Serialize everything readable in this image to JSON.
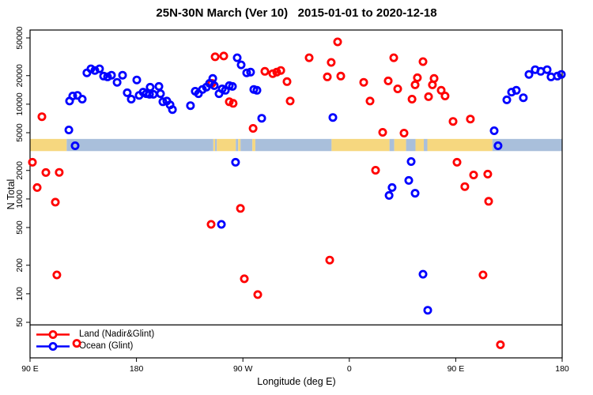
{
  "title": "25N-30N March (Ver 10)   2015-01-01 to 2020-12-18",
  "chart_data": {
    "type": "scatter",
    "title": "25N-30N March (Ver 10)   2015-01-01 to 2020-12-18",
    "xlabel": "Longitude (deg E)",
    "ylabel": "N Total",
    "x_axis": {
      "range_deg_from_90E": [
        0,
        450
      ],
      "tick_positions": [
        0,
        90,
        180,
        270,
        360,
        450
      ],
      "tick_labels": [
        "90 E",
        "180",
        "90 W",
        "0",
        "90 E",
        "180"
      ]
    },
    "y_axis": {
      "scale": "log10",
      "tick_values": [
        50,
        100,
        200,
        500,
        1000,
        2000,
        5000,
        10000,
        20000,
        50000
      ],
      "tick_labels": [
        "50",
        "100",
        "200",
        "500",
        "1000",
        "2000",
        "5000",
        "10000",
        "20000",
        "50000"
      ],
      "visible_range": [
        21,
        60000
      ]
    },
    "grid": "off",
    "hline_n": 47,
    "land_ocean_strip": {
      "n_top": 4300,
      "n_bottom": 3200,
      "land_color": "#f6d77f",
      "ocean_color": "#a9bfdb",
      "segments": [
        [
          "land",
          0,
          31
        ],
        [
          "ocean",
          31,
          155
        ],
        [
          "land",
          155,
          156.5
        ],
        [
          "ocean",
          156.5,
          158
        ],
        [
          "land",
          158,
          174
        ],
        [
          "ocean",
          174,
          176
        ],
        [
          "land",
          176,
          178
        ],
        [
          "ocean",
          178,
          188
        ],
        [
          "land",
          188,
          190.5
        ],
        [
          "ocean",
          190.5,
          255
        ],
        [
          "land",
          255,
          304
        ],
        [
          "ocean",
          304,
          308
        ],
        [
          "land",
          308,
          318
        ],
        [
          "ocean",
          318,
          326
        ],
        [
          "land",
          326,
          333
        ],
        [
          "ocean",
          333,
          336
        ],
        [
          "land",
          336,
          391
        ],
        [
          "ocean",
          391,
          450
        ]
      ]
    },
    "legend": {
      "position": "bottom-left"
    },
    "series": [
      {
        "name": "Land (Nadir&Glint)",
        "color": "#ff0000",
        "marker": "open-circle",
        "points": [
          [
            10,
            7380
          ],
          [
            2,
            2440
          ],
          [
            13.4,
            1900
          ],
          [
            24.7,
            1910
          ],
          [
            6,
            1320
          ],
          [
            21.4,
            925
          ],
          [
            22.7,
            158
          ],
          [
            39.5,
            30
          ],
          [
            153.8,
            16600
          ],
          [
            156.5,
            31600
          ],
          [
            163.8,
            32200
          ],
          [
            168.5,
            10600
          ],
          [
            171.8,
            10200
          ],
          [
            188.6,
            5560
          ],
          [
            198.6,
            22200
          ],
          [
            205.3,
            21000
          ],
          [
            208.6,
            21800
          ],
          [
            212,
            22700
          ],
          [
            217.3,
            17300
          ],
          [
            220,
            10800
          ],
          [
            236,
            30900
          ],
          [
            254.7,
            27600
          ],
          [
            251.4,
            19400
          ],
          [
            262.8,
            19800
          ],
          [
            260.1,
            45400
          ],
          [
            177.9,
            795
          ],
          [
            153.1,
            540
          ],
          [
            253.4,
            227
          ],
          [
            181.2,
            144
          ],
          [
            192.6,
            98
          ],
          [
            282.2,
            17000
          ],
          [
            287.5,
            10800
          ],
          [
            292.2,
            2010
          ],
          [
            298.2,
            5050
          ],
          [
            302.9,
            17600
          ],
          [
            307.6,
            30900
          ],
          [
            310.9,
            14500
          ],
          [
            316.3,
            4950
          ],
          [
            323,
            11300
          ],
          [
            325.6,
            16000
          ],
          [
            327.6,
            19000
          ],
          [
            332.3,
            28100
          ],
          [
            337,
            12000
          ],
          [
            340.3,
            16000
          ],
          [
            341.7,
            18700
          ],
          [
            347.7,
            14000
          ],
          [
            351,
            12200
          ],
          [
            357.7,
            6580
          ],
          [
            361.1,
            2440
          ],
          [
            367.7,
            1350
          ],
          [
            372.4,
            6970
          ],
          [
            375.1,
            1790
          ],
          [
            387.1,
            1830
          ],
          [
            387.8,
            945
          ],
          [
            383.1,
            158
          ],
          [
            397.8,
            29
          ]
        ]
      },
      {
        "name": "Ocean (Glint)",
        "color": "#0000ff",
        "marker": "open-circle",
        "points": [
          [
            32.8,
            5350
          ],
          [
            38.1,
            3640
          ],
          [
            33.4,
            10800
          ],
          [
            36.1,
            12200
          ],
          [
            40.1,
            12400
          ],
          [
            44.1,
            11300
          ],
          [
            48.1,
            21400
          ],
          [
            51.5,
            23600
          ],
          [
            54.8,
            22700
          ],
          [
            58.8,
            23600
          ],
          [
            62.2,
            19800
          ],
          [
            65.5,
            19400
          ],
          [
            68.9,
            20200
          ],
          [
            73.6,
            17000
          ],
          [
            78.2,
            20200
          ],
          [
            82.2,
            13200
          ],
          [
            85.6,
            11300
          ],
          [
            90.3,
            18000
          ],
          [
            92.3,
            12400
          ],
          [
            95.6,
            13400
          ],
          [
            98.3,
            12900
          ],
          [
            101.6,
            15100
          ],
          [
            101,
            12700
          ],
          [
            104.3,
            12700
          ],
          [
            109,
            15400
          ],
          [
            110.3,
            12900
          ],
          [
            112.3,
            10600
          ],
          [
            115.7,
            10800
          ],
          [
            118.4,
            9850
          ],
          [
            120.4,
            8770
          ],
          [
            135.7,
            9660
          ],
          [
            139.7,
            13700
          ],
          [
            142.4,
            12900
          ],
          [
            145.8,
            14300
          ],
          [
            149.1,
            15100
          ],
          [
            151.8,
            16600
          ],
          [
            154.5,
            18700
          ],
          [
            155.8,
            15700
          ],
          [
            159.8,
            12900
          ],
          [
            162.5,
            14500
          ],
          [
            165.2,
            14000
          ],
          [
            168.5,
            15700
          ],
          [
            171.2,
            15400
          ],
          [
            175.2,
            30900
          ],
          [
            178.5,
            26000
          ],
          [
            183.2,
            21400
          ],
          [
            186.5,
            21800
          ],
          [
            189.2,
            14300
          ],
          [
            191.9,
            14000
          ],
          [
            195.9,
            7100
          ],
          [
            161.8,
            540
          ],
          [
            173.8,
            2440
          ],
          [
            256.1,
            7240
          ],
          [
            322.3,
            2480
          ],
          [
            320.3,
            1570
          ],
          [
            306.2,
            1320
          ],
          [
            303.6,
            1090
          ],
          [
            325.6,
            1150
          ],
          [
            332.3,
            161
          ],
          [
            336.3,
            67
          ],
          [
            392.5,
            5250
          ],
          [
            395.8,
            3640
          ],
          [
            403.2,
            11100
          ],
          [
            407.2,
            13400
          ],
          [
            411.2,
            14000
          ],
          [
            417.2,
            11700
          ],
          [
            421.9,
            20600
          ],
          [
            427.2,
            23100
          ],
          [
            431.9,
            22200
          ],
          [
            437.3,
            23100
          ],
          [
            440.6,
            19400
          ],
          [
            446,
            19800
          ],
          [
            449.3,
            20600
          ]
        ]
      }
    ]
  }
}
